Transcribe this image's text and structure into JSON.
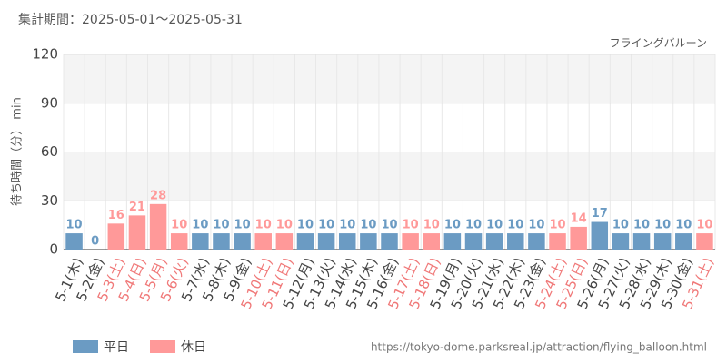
{
  "chart_data": {
    "type": "bar",
    "title": "集計期間：2025-05-01～2025-05-31",
    "subtitle": "フライングバルーン",
    "y_label": "待ち時間（分） min",
    "source": "https://tokyo-dome.parksreal.jp/attraction/flying_balloon.html",
    "categories": [
      "5-1(木)",
      "5-2(金)",
      "5-3(土)",
      "5-4(日)",
      "5-5(月)",
      "5-6(火)",
      "5-7(水)",
      "5-8(木)",
      "5-9(金)",
      "5-10(土)",
      "5-11(日)",
      "5-12(月)",
      "5-13(火)",
      "5-14(水)",
      "5-15(木)",
      "5-16(金)",
      "5-17(土)",
      "5-18(日)",
      "5-19(月)",
      "5-20(火)",
      "5-21(水)",
      "5-22(木)",
      "5-23(金)",
      "5-24(土)",
      "5-25(日)",
      "5-26(月)",
      "5-27(火)",
      "5-28(水)",
      "5-29(木)",
      "5-30(金)",
      "5-31(土)"
    ],
    "series": [
      {
        "name": "平日",
        "color": "#6b9bc3",
        "label_color": "#444444",
        "values": [
          10,
          0,
          null,
          null,
          null,
          null,
          10,
          10,
          10,
          null,
          null,
          10,
          10,
          10,
          10,
          10,
          null,
          null,
          10,
          10,
          10,
          10,
          10,
          null,
          null,
          17,
          10,
          10,
          10,
          10,
          null
        ]
      },
      {
        "name": "休日",
        "color": "#ff9999",
        "label_color": "#f07878",
        "values": [
          null,
          null,
          16,
          21,
          28,
          10,
          null,
          null,
          null,
          10,
          10,
          null,
          null,
          null,
          null,
          null,
          10,
          10,
          null,
          null,
          null,
          null,
          null,
          10,
          14,
          null,
          null,
          null,
          null,
          null,
          10
        ]
      }
    ],
    "ylim": [
      0,
      120
    ],
    "yticks": [
      0,
      30,
      60,
      90,
      120
    ],
    "grid": true
  }
}
